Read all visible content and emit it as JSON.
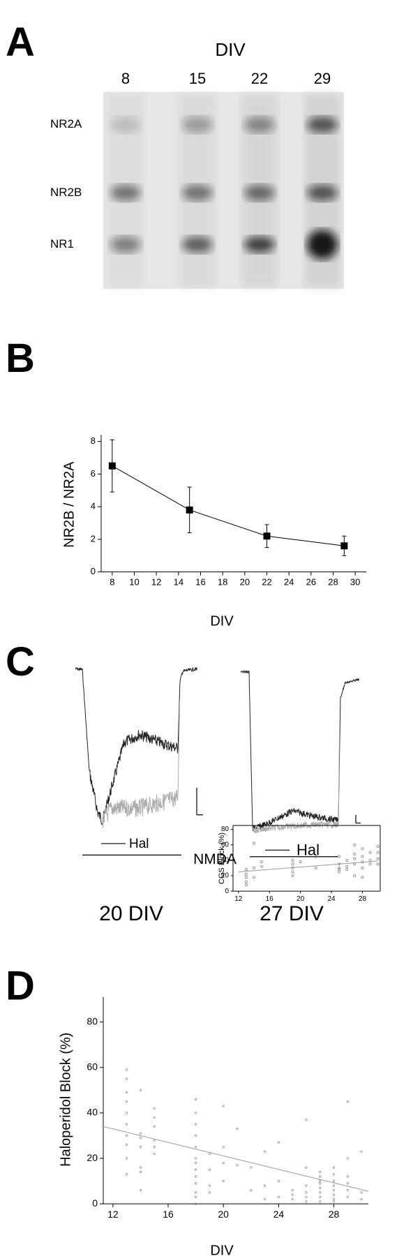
{
  "panels": [
    "A",
    "B",
    "C",
    "D"
  ],
  "blot": {
    "title": "DIV",
    "lanes": [
      8,
      15,
      22,
      29
    ],
    "bands": [
      "NR2A",
      "NR2B",
      "NR1"
    ]
  },
  "traces": {
    "drug": [
      "Hal",
      "Hal"
    ],
    "agonist": "NMDA",
    "captions": [
      "20 DIV",
      "27 DIV"
    ]
  },
  "chart_data": [
    {
      "type": "line",
      "x": [
        8,
        15,
        22,
        29
      ],
      "values": [
        6.5,
        3.8,
        2.2,
        1.6
      ],
      "errors": [
        1.6,
        1.4,
        0.7,
        0.6
      ],
      "color": "#000000",
      "xlabel": "DIV",
      "ylabel": "NR2B / NR2A",
      "xlim": [
        7,
        31
      ],
      "xticks": [
        8,
        10,
        12,
        14,
        16,
        18,
        20,
        22,
        24,
        26,
        28,
        30
      ],
      "ylim": [
        0,
        8.4
      ],
      "yticks": [
        0,
        2,
        4,
        6,
        8
      ]
    },
    {
      "type": "scatter",
      "color": "#999999",
      "xlabel": "DIV",
      "ylabel": "Haloperidol Block (%)",
      "x": [
        13,
        13,
        13,
        13,
        13,
        13,
        13,
        13,
        13,
        13,
        14,
        14,
        14,
        14,
        14,
        14,
        14,
        15,
        15,
        15,
        15,
        15,
        15,
        18,
        18,
        18,
        18,
        18,
        18,
        18,
        18,
        18,
        18,
        18,
        18,
        18,
        19,
        19,
        19,
        19,
        20,
        20,
        20,
        20,
        21,
        21,
        22,
        22,
        23,
        23,
        23,
        24,
        24,
        24,
        25,
        25,
        25,
        26,
        26,
        26,
        26,
        26,
        26,
        27,
        27,
        27,
        27,
        27,
        27,
        27,
        27,
        28,
        28,
        28,
        28,
        28,
        28,
        28,
        28,
        29,
        29,
        29,
        29,
        29,
        29,
        30,
        30,
        30
      ],
      "values": [
        59,
        55,
        49,
        45,
        40,
        35,
        30,
        26,
        20,
        13,
        50,
        31,
        29,
        25,
        16,
        14,
        6,
        42,
        38,
        34,
        28,
        25,
        22,
        46,
        40,
        35,
        30,
        25,
        20,
        18,
        15,
        12,
        9,
        5,
        3,
        0,
        22,
        15,
        8,
        5,
        43,
        25,
        18,
        10,
        33,
        17,
        16,
        6,
        23,
        8,
        2,
        27,
        10,
        3,
        6,
        4,
        2,
        37,
        16,
        8,
        5,
        3,
        1,
        14,
        12,
        10,
        9,
        7,
        5,
        3,
        1,
        16,
        13,
        10,
        8,
        6,
        4,
        2,
        1,
        45,
        20,
        12,
        9,
        6,
        3,
        23,
        5,
        2
      ],
      "fit": {
        "x": [
          11.3,
          30.5
        ],
        "values": [
          34,
          5.5
        ]
      },
      "xlim": [
        11.3,
        30.5
      ],
      "xticks": [
        12,
        16,
        20,
        24,
        28
      ],
      "ylim": [
        0,
        91
      ],
      "yticks": [
        0,
        20,
        40,
        60,
        80
      ]
    },
    {
      "type": "scatter",
      "color": "#888888",
      "ylabel": "CGS Block (%)",
      "x": [
        13,
        13,
        13,
        13,
        13,
        14,
        14,
        14,
        15,
        15,
        19,
        19,
        19,
        19,
        19,
        20,
        22,
        22,
        25,
        25,
        25,
        25,
        25,
        26,
        26,
        26,
        27,
        27,
        27,
        27,
        27,
        28,
        28,
        28,
        28,
        28,
        29,
        29,
        29,
        30,
        30,
        30,
        30
      ],
      "values": [
        18,
        22,
        28,
        12,
        8,
        62,
        30,
        18,
        38,
        32,
        40,
        35,
        30,
        25,
        20,
        38,
        45,
        30,
        45,
        35,
        30,
        28,
        25,
        40,
        32,
        28,
        60,
        48,
        42,
        35,
        20,
        55,
        45,
        38,
        30,
        18,
        50,
        40,
        35,
        58,
        50,
        42,
        35
      ],
      "fit": {
        "x": [
          12,
          30
        ],
        "values": [
          25,
          39
        ]
      },
      "xlim": [
        11.3,
        30.3
      ],
      "xticks": [
        12,
        16,
        20,
        24,
        28
      ],
      "ylim": [
        0,
        85
      ],
      "yticks": [
        0,
        20,
        40,
        60,
        80
      ]
    }
  ]
}
